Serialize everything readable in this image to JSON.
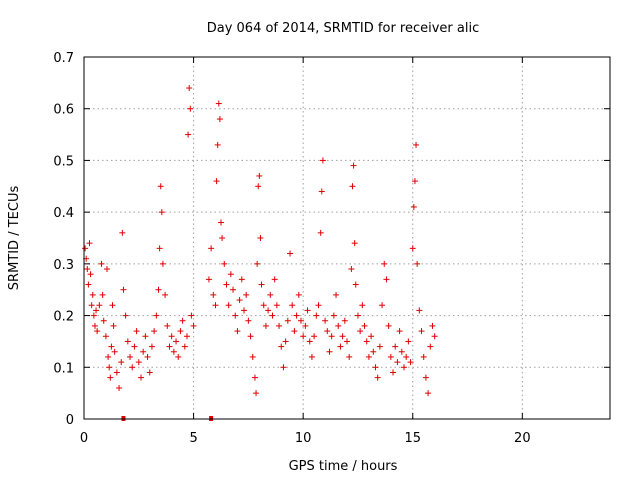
{
  "chart_data": {
    "type": "scatter",
    "title": "Day 064 of 2014, SRMTID for receiver alic",
    "xlabel": "GPS time / hours",
    "ylabel": "SRMTID / TECUs",
    "xlim": [
      0,
      24
    ],
    "ylim": [
      0,
      0.7
    ],
    "xticks": [
      0,
      5,
      10,
      15,
      20
    ],
    "xtick_labels": [
      "0",
      "5",
      "10",
      "15",
      "20"
    ],
    "yticks": [
      0,
      0.1,
      0.2,
      0.3,
      0.4,
      0.5,
      0.6,
      0.7
    ],
    "ytick_labels": [
      "0",
      "0.1",
      "0.2",
      "0.3",
      "0.4",
      "0.5",
      "0.6",
      "0.7"
    ],
    "grid": true,
    "marker": "+",
    "color": "#e00000",
    "series": [
      {
        "name": "SRMTID",
        "points": [
          [
            0.05,
            0.33
          ],
          [
            0.1,
            0.31
          ],
          [
            0.15,
            0.29
          ],
          [
            0.2,
            0.26
          ],
          [
            0.25,
            0.34
          ],
          [
            0.3,
            0.28
          ],
          [
            0.35,
            0.22
          ],
          [
            0.4,
            0.24
          ],
          [
            0.45,
            0.2
          ],
          [
            0.5,
            0.18
          ],
          [
            0.55,
            0.21
          ],
          [
            0.6,
            0.17
          ],
          [
            0.7,
            0.22
          ],
          [
            0.8,
            0.3
          ],
          [
            0.85,
            0.24
          ],
          [
            0.9,
            0.19
          ],
          [
            1.0,
            0.16
          ],
          [
            1.05,
            0.29
          ],
          [
            1.1,
            0.12
          ],
          [
            1.15,
            0.1
          ],
          [
            1.2,
            0.08
          ],
          [
            1.25,
            0.14
          ],
          [
            1.3,
            0.22
          ],
          [
            1.35,
            0.18
          ],
          [
            1.4,
            0.13
          ],
          [
            1.5,
            0.09
          ],
          [
            1.6,
            0.06
          ],
          [
            1.7,
            0.11
          ],
          [
            1.75,
            0.36
          ],
          [
            1.8,
            0.25
          ],
          [
            1.9,
            0.2
          ],
          [
            2.0,
            0.15
          ],
          [
            2.1,
            0.12
          ],
          [
            2.2,
            0.1
          ],
          [
            2.3,
            0.14
          ],
          [
            2.4,
            0.17
          ],
          [
            2.5,
            0.11
          ],
          [
            2.6,
            0.08
          ],
          [
            2.7,
            0.13
          ],
          [
            2.8,
            0.16
          ],
          [
            2.9,
            0.12
          ],
          [
            3.0,
            0.09
          ],
          [
            3.1,
            0.14
          ],
          [
            3.2,
            0.17
          ],
          [
            3.3,
            0.2
          ],
          [
            3.4,
            0.25
          ],
          [
            3.45,
            0.33
          ],
          [
            3.5,
            0.45
          ],
          [
            3.55,
            0.4
          ],
          [
            3.6,
            0.3
          ],
          [
            3.7,
            0.24
          ],
          [
            3.8,
            0.18
          ],
          [
            3.9,
            0.14
          ],
          [
            4.0,
            0.16
          ],
          [
            4.1,
            0.13
          ],
          [
            4.2,
            0.15
          ],
          [
            4.3,
            0.12
          ],
          [
            4.4,
            0.17
          ],
          [
            4.5,
            0.19
          ],
          [
            4.6,
            0.14
          ],
          [
            4.7,
            0.16
          ],
          [
            4.75,
            0.55
          ],
          [
            4.8,
            0.64
          ],
          [
            4.85,
            0.6
          ],
          [
            4.9,
            0.2
          ],
          [
            5.0,
            0.18
          ],
          [
            5.7,
            0.27
          ],
          [
            5.8,
            0.33
          ],
          [
            5.9,
            0.24
          ],
          [
            6.0,
            0.22
          ],
          [
            6.05,
            0.46
          ],
          [
            6.1,
            0.53
          ],
          [
            6.15,
            0.61
          ],
          [
            6.2,
            0.58
          ],
          [
            6.25,
            0.38
          ],
          [
            6.3,
            0.35
          ],
          [
            6.4,
            0.3
          ],
          [
            6.5,
            0.26
          ],
          [
            6.6,
            0.22
          ],
          [
            6.7,
            0.28
          ],
          [
            6.8,
            0.25
          ],
          [
            6.9,
            0.2
          ],
          [
            7.0,
            0.17
          ],
          [
            7.1,
            0.23
          ],
          [
            7.2,
            0.27
          ],
          [
            7.3,
            0.21
          ],
          [
            7.4,
            0.24
          ],
          [
            7.5,
            0.19
          ],
          [
            7.6,
            0.16
          ],
          [
            7.7,
            0.12
          ],
          [
            7.8,
            0.08
          ],
          [
            7.85,
            0.05
          ],
          [
            7.9,
            0.3
          ],
          [
            7.95,
            0.45
          ],
          [
            8.0,
            0.47
          ],
          [
            8.05,
            0.35
          ],
          [
            8.1,
            0.26
          ],
          [
            8.2,
            0.22
          ],
          [
            8.3,
            0.18
          ],
          [
            8.4,
            0.21
          ],
          [
            8.5,
            0.24
          ],
          [
            8.6,
            0.2
          ],
          [
            8.7,
            0.27
          ],
          [
            8.8,
            0.22
          ],
          [
            8.9,
            0.18
          ],
          [
            9.0,
            0.14
          ],
          [
            9.1,
            0.1
          ],
          [
            9.2,
            0.15
          ],
          [
            9.3,
            0.19
          ],
          [
            9.4,
            0.32
          ],
          [
            9.5,
            0.22
          ],
          [
            9.6,
            0.17
          ],
          [
            9.7,
            0.2
          ],
          [
            9.8,
            0.24
          ],
          [
            9.9,
            0.19
          ],
          [
            10.0,
            0.16
          ],
          [
            10.1,
            0.18
          ],
          [
            10.2,
            0.21
          ],
          [
            10.3,
            0.15
          ],
          [
            10.4,
            0.12
          ],
          [
            10.5,
            0.16
          ],
          [
            10.6,
            0.2
          ],
          [
            10.7,
            0.22
          ],
          [
            10.8,
            0.36
          ],
          [
            10.85,
            0.44
          ],
          [
            10.9,
            0.5
          ],
          [
            11.0,
            0.19
          ],
          [
            11.1,
            0.17
          ],
          [
            11.2,
            0.13
          ],
          [
            11.3,
            0.16
          ],
          [
            11.4,
            0.2
          ],
          [
            11.5,
            0.24
          ],
          [
            11.6,
            0.18
          ],
          [
            11.7,
            0.14
          ],
          [
            11.8,
            0.16
          ],
          [
            11.9,
            0.19
          ],
          [
            12.0,
            0.15
          ],
          [
            12.1,
            0.12
          ],
          [
            12.2,
            0.29
          ],
          [
            12.25,
            0.45
          ],
          [
            12.3,
            0.49
          ],
          [
            12.35,
            0.34
          ],
          [
            12.4,
            0.26
          ],
          [
            12.5,
            0.2
          ],
          [
            12.6,
            0.17
          ],
          [
            12.7,
            0.22
          ],
          [
            12.8,
            0.18
          ],
          [
            12.9,
            0.15
          ],
          [
            13.0,
            0.12
          ],
          [
            13.1,
            0.16
          ],
          [
            13.2,
            0.13
          ],
          [
            13.3,
            0.1
          ],
          [
            13.4,
            0.08
          ],
          [
            13.5,
            0.14
          ],
          [
            13.6,
            0.22
          ],
          [
            13.7,
            0.3
          ],
          [
            13.8,
            0.27
          ],
          [
            13.9,
            0.18
          ],
          [
            14.0,
            0.12
          ],
          [
            14.1,
            0.09
          ],
          [
            14.2,
            0.14
          ],
          [
            14.3,
            0.11
          ],
          [
            14.4,
            0.17
          ],
          [
            14.5,
            0.13
          ],
          [
            14.6,
            0.1
          ],
          [
            14.7,
            0.12
          ],
          [
            14.8,
            0.15
          ],
          [
            14.9,
            0.11
          ],
          [
            15.0,
            0.33
          ],
          [
            15.05,
            0.41
          ],
          [
            15.1,
            0.46
          ],
          [
            15.15,
            0.53
          ],
          [
            15.2,
            0.3
          ],
          [
            15.3,
            0.21
          ],
          [
            15.4,
            0.17
          ],
          [
            15.5,
            0.12
          ],
          [
            15.6,
            0.08
          ],
          [
            15.7,
            0.05
          ],
          [
            15.8,
            0.14
          ],
          [
            15.9,
            0.18
          ],
          [
            16.0,
            0.16
          ]
        ]
      }
    ],
    "gap_markers_x": [
      1.8,
      5.8
    ]
  }
}
